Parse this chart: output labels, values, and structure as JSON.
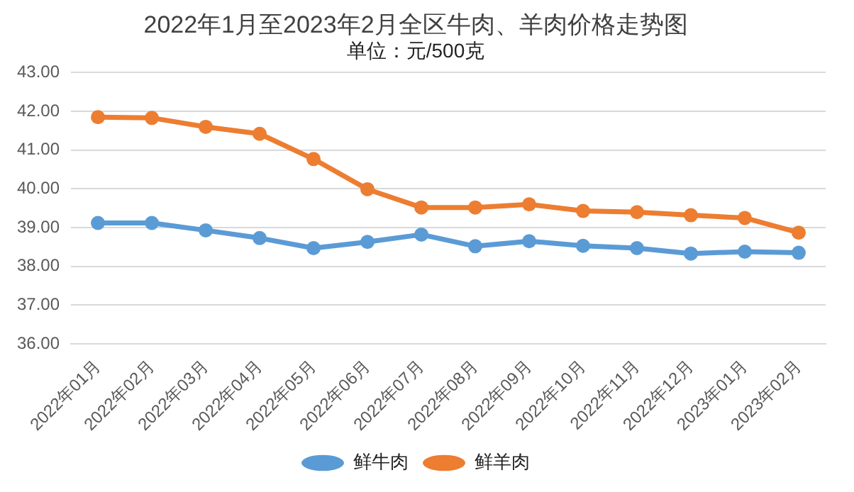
{
  "chart_data": {
    "type": "line",
    "title": "2022年1月至2023年2月全区牛肉、羊肉价格走势图",
    "subtitle": "单位：元/500克",
    "categories": [
      "2022年01月",
      "2022年02月",
      "2022年03月",
      "2022年04月",
      "2022年05月",
      "2022年06月",
      "2022年07月",
      "2022年08月",
      "2022年09月",
      "2022年10月",
      "2022年11月",
      "2022年12月",
      "2023年01月",
      "2023年02月"
    ],
    "series": [
      {
        "name": "鲜牛肉",
        "color": "#5b9bd5",
        "values": [
          39.12,
          39.12,
          38.93,
          38.73,
          38.47,
          38.63,
          38.82,
          38.52,
          38.65,
          38.53,
          38.47,
          38.33,
          38.38,
          38.35
        ]
      },
      {
        "name": "鲜羊肉",
        "color": "#ed7d31",
        "values": [
          41.85,
          41.83,
          41.6,
          41.42,
          40.77,
          39.99,
          39.52,
          39.52,
          39.6,
          39.43,
          39.4,
          39.32,
          39.25,
          38.87
        ]
      }
    ],
    "ylim": [
      36,
      43
    ],
    "yticks": [
      {
        "value": 36,
        "label": "36.00"
      },
      {
        "value": 37,
        "label": "37.00"
      },
      {
        "value": 38,
        "label": "38.00"
      },
      {
        "value": 39,
        "label": "39.00"
      },
      {
        "value": 40,
        "label": "40.00"
      },
      {
        "value": 41,
        "label": "41.00"
      },
      {
        "value": 42,
        "label": "42.00"
      },
      {
        "value": 43,
        "label": "43.00"
      }
    ],
    "grid": "y",
    "legend": "bottom",
    "marker": "circle",
    "line_style": "solid"
  }
}
